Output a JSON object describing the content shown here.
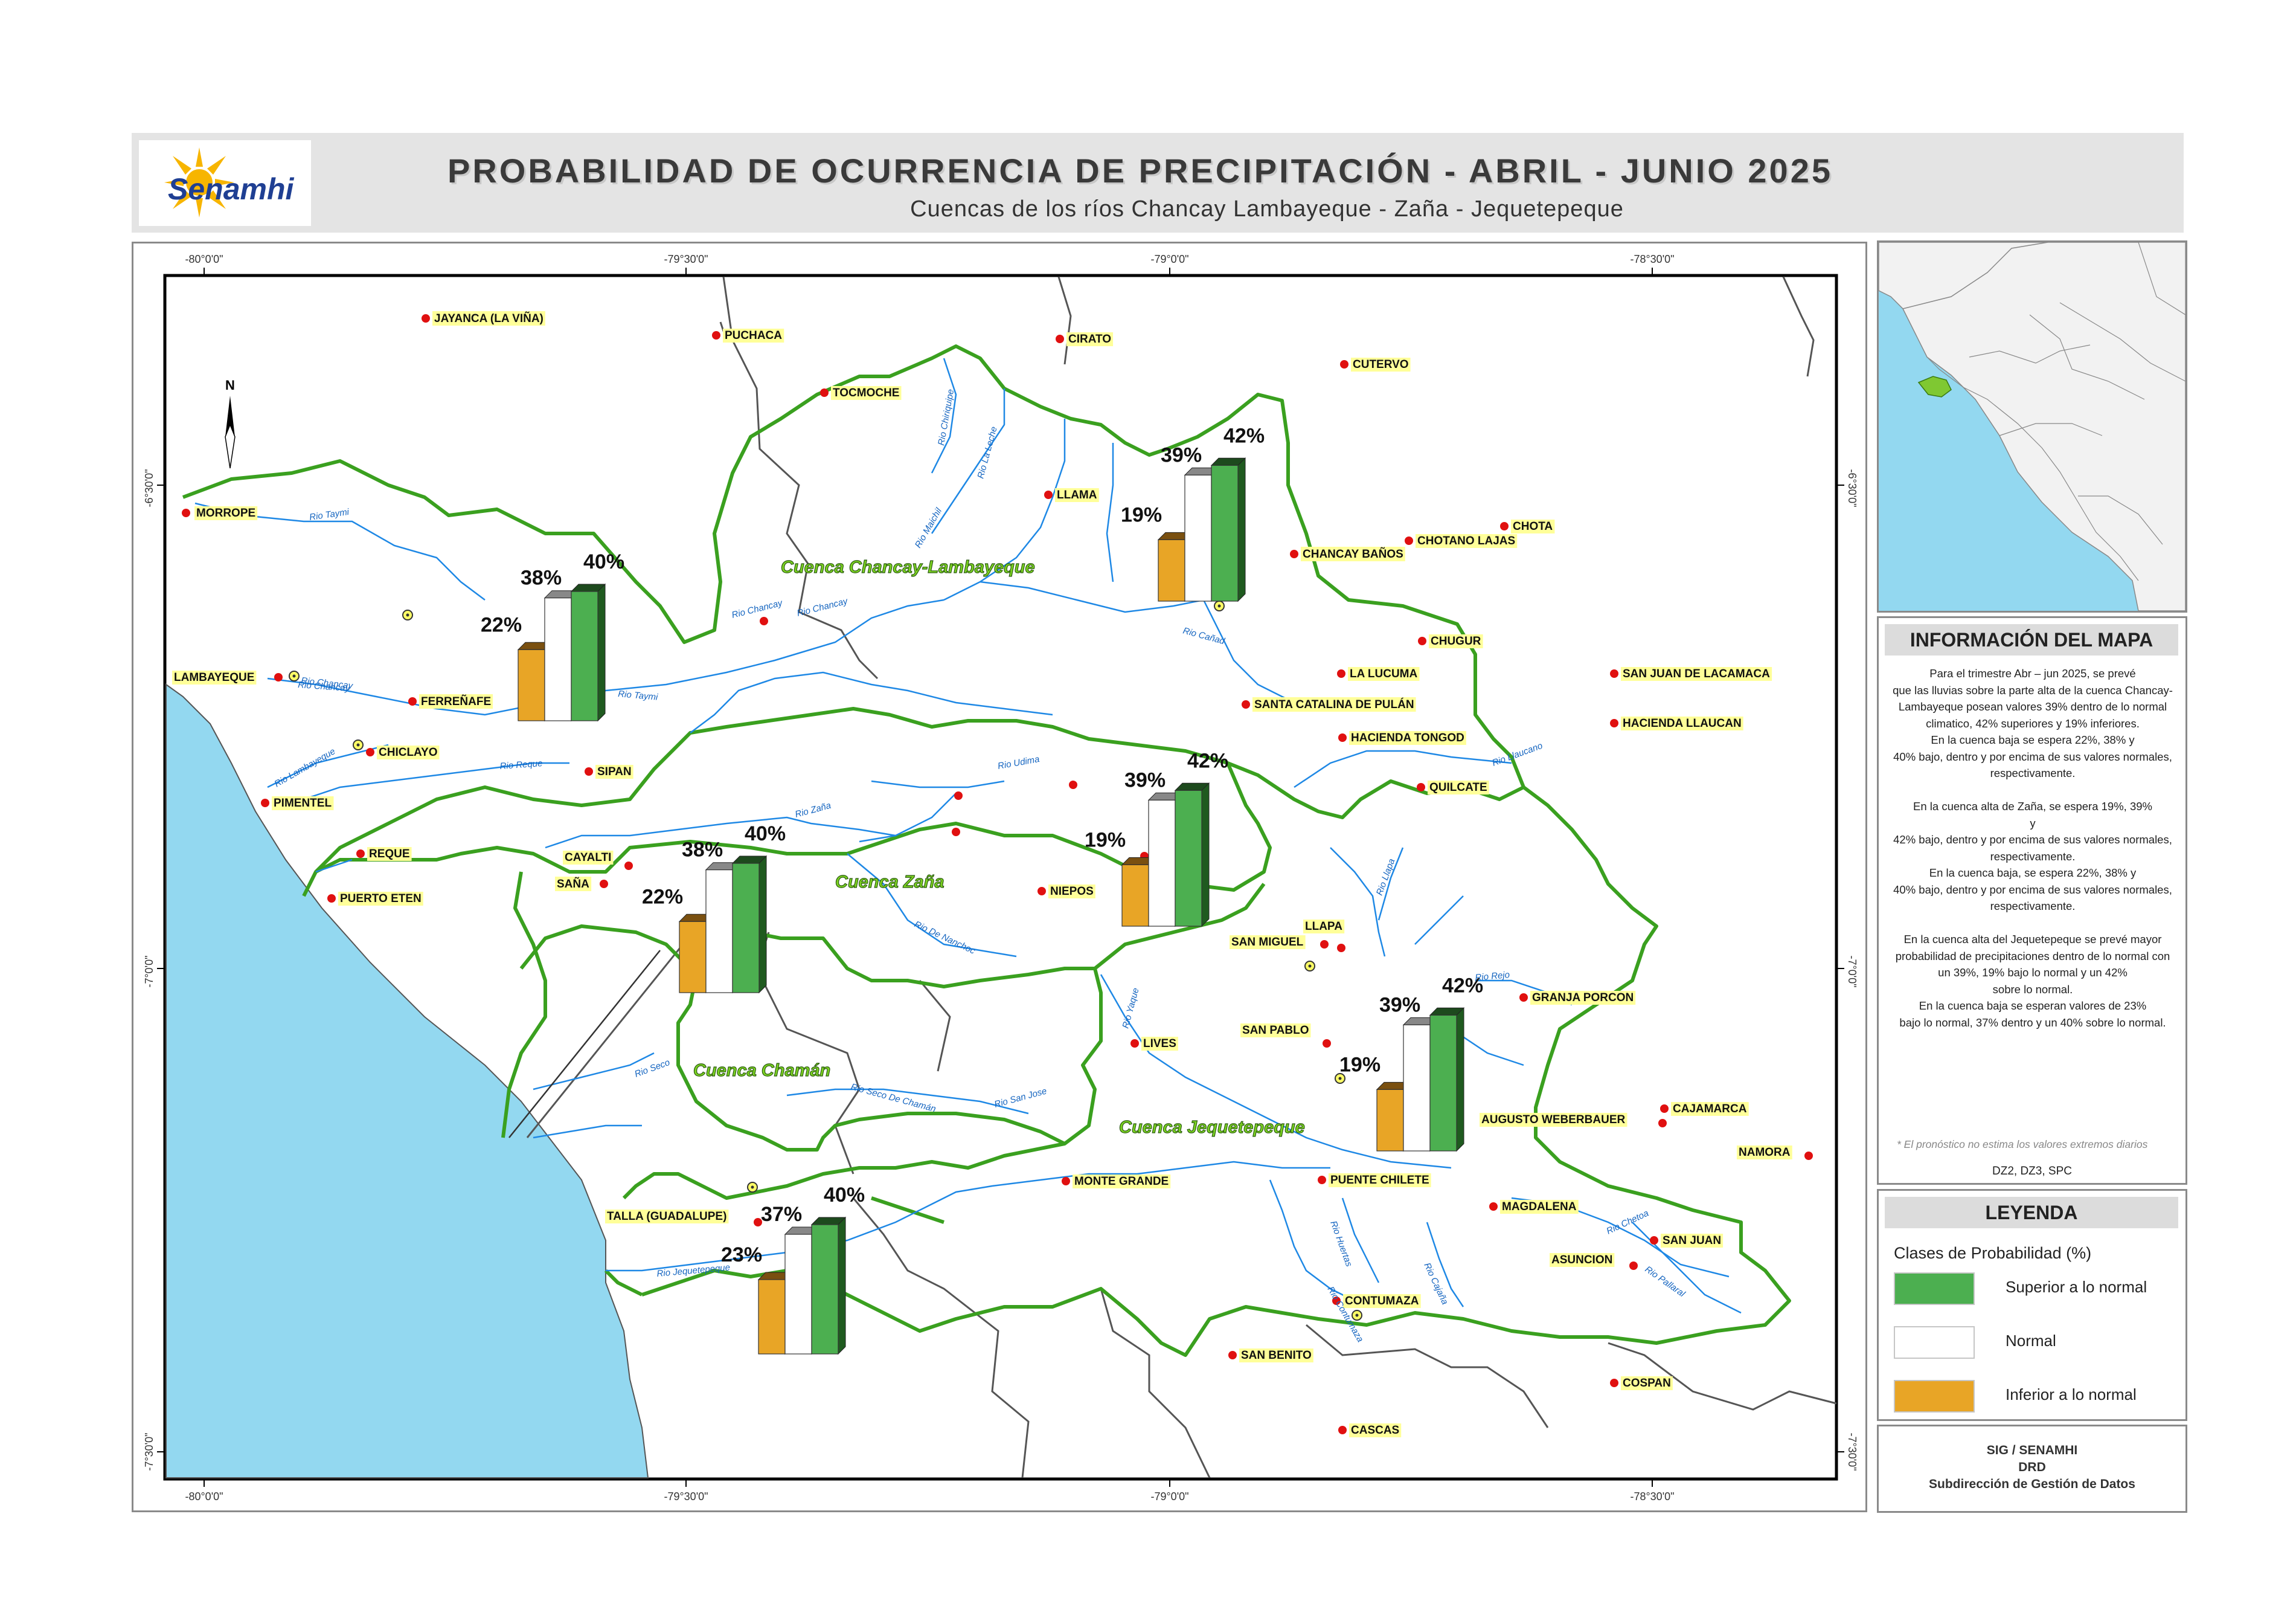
{
  "header": {
    "logo_text": "Senamhi",
    "title": "PROBABILIDAD DE OCURRENCIA DE PRECIPITACIÓN - ABRIL - JUNIO 2025",
    "subtitle": "Cuencas de los ríos Chancay Lambayeque - Zaña - Jequetepeque"
  },
  "coordinates": {
    "top_lon": [
      "-80°0'0\"",
      "-79°30'0\"",
      "-79°0'0\"",
      "-78°30'0\""
    ],
    "bottom_lon": [
      "-80°0'0\"",
      "-79°30'0\"",
      "-79°0'0\"",
      "-78°30'0\""
    ],
    "left_lat": [
      "-6°30'0\"",
      "-7°0'0\"",
      "-7°30'0\""
    ],
    "right_lat": [
      "-6°30'0\"",
      "-7°0'0\"",
      "-7°30'0\""
    ]
  },
  "north_arrow": "N",
  "basins": [
    {
      "name": "Cuenca Chancay-Lambayeque"
    },
    {
      "name": "Cuenca Zaña"
    },
    {
      "name": "Cuenca Chamán"
    },
    {
      "name": "Cuenca Jequetepeque"
    }
  ],
  "bar_charts": [
    {
      "id": "chancay-baja",
      "inferior": "22%",
      "normal": "38%",
      "superior": "40%",
      "values": [
        22,
        38,
        40
      ]
    },
    {
      "id": "chancay-alta",
      "inferior": "19%",
      "normal": "39%",
      "superior": "42%",
      "values": [
        19,
        39,
        42
      ]
    },
    {
      "id": "zana-baja",
      "inferior": "22%",
      "normal": "38%",
      "superior": "40%",
      "values": [
        22,
        38,
        40
      ]
    },
    {
      "id": "zana-alta",
      "inferior": "19%",
      "normal": "39%",
      "superior": "42%",
      "values": [
        19,
        39,
        42
      ]
    },
    {
      "id": "jequetepeque-alta",
      "inferior": "19%",
      "normal": "39%",
      "superior": "42%",
      "values": [
        19,
        39,
        42
      ]
    },
    {
      "id": "jequetepeque-baja",
      "inferior": "23%",
      "normal": "37%",
      "superior": "40%",
      "values": [
        23,
        37,
        40
      ]
    }
  ],
  "stations": [
    "JAYANCA (LA VIÑA)",
    "PUCHACA",
    "CIRATO",
    "CUTERVO",
    "TOCMOCHE",
    "MORROPE",
    "LLAMA",
    "CHOTA",
    "CHOTANO LAJAS",
    "CHANCAY BAÑOS",
    "CHUGUR",
    "LA LUCUMA",
    "LAMBAYEQUE",
    "FERREÑAFE",
    "SANTA CATALINA DE PULÁN",
    "SAN JUAN DE LACAMACA",
    "HACIENDA TONGOD",
    "HACIENDA LLAUCAN",
    "CHICLAYO",
    "SIPAN",
    "QUILCATE",
    "PIMENTEL",
    "REQUE",
    "CAYALTI",
    "SAÑA",
    "PUERTO ETEN",
    "NIEPOS",
    "LLAPA",
    "SAN MIGUEL",
    "GRANJA PORCON",
    "SAN PABLO",
    "LIVES",
    "CAJAMARCA",
    "AUGUSTO WEBERBAUER",
    "NAMORA",
    "MONTE GRANDE",
    "PUENTE CHILETE",
    "MAGDALENA",
    "TALLA (GUADALUPE)",
    "SAN JUAN",
    "ASUNCION",
    "CONTUMAZA",
    "SAN BENITO",
    "COSPAN",
    "CASCAS"
  ],
  "rivers": [
    "Rio Taymi",
    "Rio Chancay",
    "Rio Chiriquipe",
    "Rio La Leche",
    "Rio Maichil",
    "Rio Chancay",
    "Rio Cañad",
    "Rio Chancay",
    "Rio Taymi",
    "Rio Reque",
    "Rio Lambayeque",
    "Rio Chancay",
    "Rio Udima",
    "Rio Zaña",
    "Rio De Nanchoc",
    "Rio Llaucano",
    "Rio Llapa",
    "Rio Rejo",
    "Rio Seco",
    "Rio Seco De Chamán",
    "Rio San Jose",
    "Rio Yaque",
    "Rio Jequetepeque",
    "Rio Huertas",
    "Rio Contumaza",
    "Rio Cajaña",
    "Rio Chetoa",
    "Rio Pallaral"
  ],
  "info": {
    "heading": "INFORMACIÓN DEL MAPA",
    "lines": [
      "Para el trimestre Abr – jun 2025, se prevé",
      "que las lluvias sobre la parte alta de la cuenca Chancay-",
      "Lambayeque posean valores 39% dentro de lo normal",
      "climatico, 42% superiores y 19% inferiores.",
      "En la cuenca baja se espera 22%, 38% y",
      "40% bajo, dentro y  por encima de sus valores normales,",
      "respectivamente.",
      "",
      "En la cuenca alta de Zaña, se espera 19%, 39%",
      "y",
      "42% bajo, dentro y  por encima de sus valores normales,",
      "respectivamente.",
      "En la cuenca baja, se espera 22%, 38% y",
      "40% bajo, dentro y  por encima de sus valores normales,",
      "respectivamente.",
      "",
      "En la cuenca alta del Jequetepeque se prevé mayor",
      "probabilidad de precipitaciones dentro de lo normal con",
      "un 39%, 19% bajo lo normal y un 42%",
      "sobre lo normal.",
      "En la cuenca baja se esperan valores de 23%",
      "bajo lo normal, 37% dentro y un 40% sobre lo normal."
    ],
    "note": "* El pronóstico no estima los valores extremos diarios",
    "footer": "DZ2, DZ3, SPC"
  },
  "legend": {
    "heading": "LEYENDA",
    "subtitle": "Clases de Probabilidad (%)",
    "items": [
      {
        "label": "Superior a lo normal",
        "color": "#4caf50"
      },
      {
        "label": "Normal",
        "color": "#ffffff"
      },
      {
        "label": "Inferior a lo normal",
        "color": "#e8a526"
      }
    ]
  },
  "credits": {
    "line1": "SIG / SENAMHI",
    "line2": "DRD",
    "line3": "Subdirección de Gestión de Datos"
  },
  "colors": {
    "superior": "#4caf50",
    "normal": "#ffffff",
    "inferior": "#e8a526",
    "basin_border": "#3aa01f",
    "ocean": "#93d8f0",
    "river": "#1e88e5",
    "label_bg": "#ffff99",
    "station": "#e01010"
  }
}
